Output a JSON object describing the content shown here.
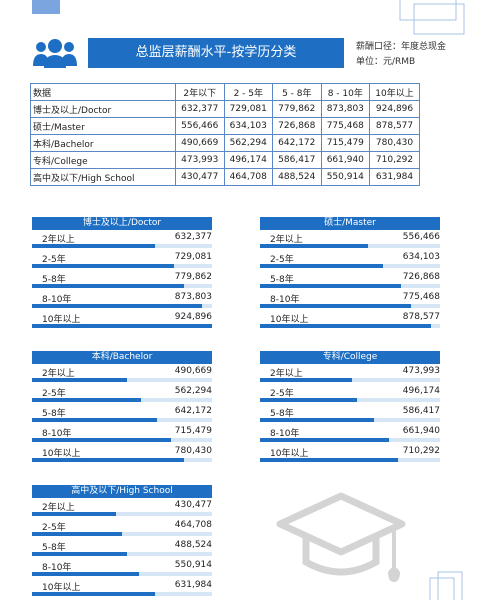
{
  "banner": {
    "title": "总监层薪酬水平-按学历分类"
  },
  "notes": {
    "line1": "薪酬口径：年度总现金",
    "line2": "单位：元/RMB"
  },
  "summary_table": {
    "header": [
      "数据",
      "2年以下",
      "2 - 5年",
      "5 - 8年",
      "8 - 10年",
      "10年以上"
    ],
    "rows": [
      [
        "博士及以上/Doctor",
        "632,377",
        "729,081",
        "779,862",
        "873,803",
        "924,896"
      ],
      [
        "硕士/Master",
        "556,466",
        "634,103",
        "726,868",
        "775,468",
        "878,577"
      ],
      [
        "本科/Bachelor",
        "490,669",
        "562,294",
        "642,172",
        "715,479",
        "780,430"
      ],
      [
        "专科/College",
        "473,993",
        "496,174",
        "586,417",
        "661,940",
        "710,292"
      ],
      [
        "高中及以下/High School",
        "430,477",
        "464,708",
        "488,524",
        "550,914",
        "631,984"
      ]
    ]
  },
  "cards": [
    {
      "title": "博士及以上/Doctor",
      "rows": [
        {
          "label": "2年以上",
          "value": "632,377"
        },
        {
          "label": "2-5年",
          "value": "729,081"
        },
        {
          "label": "5-8年",
          "value": "779,862"
        },
        {
          "label": "8-10年",
          "value": "873,803"
        },
        {
          "label": "10年以上",
          "value": "924,896"
        }
      ]
    },
    {
      "title": "硕士/Master",
      "rows": [
        {
          "label": "2年以上",
          "value": "556,466"
        },
        {
          "label": "2-5年",
          "value": "634,103"
        },
        {
          "label": "5-8年",
          "value": "726,868"
        },
        {
          "label": "8-10年",
          "value": "775,468"
        },
        {
          "label": "10年以上",
          "value": "878,577"
        }
      ]
    },
    {
      "title": "本科/Bachelor",
      "rows": [
        {
          "label": "2年以上",
          "value": "490,669"
        },
        {
          "label": "2-5年",
          "value": "562,294"
        },
        {
          "label": "5-8年",
          "value": "642,172"
        },
        {
          "label": "8-10年",
          "value": "715,479"
        },
        {
          "label": "10年以上",
          "value": "780,430"
        }
      ]
    },
    {
      "title": "专科/College",
      "rows": [
        {
          "label": "2年以上",
          "value": "473,993"
        },
        {
          "label": "2-5年",
          "value": "496,174"
        },
        {
          "label": "5-8年",
          "value": "586,417"
        },
        {
          "label": "8-10年",
          "value": "661,940"
        },
        {
          "label": "10年以上",
          "value": "710,292"
        }
      ]
    },
    {
      "title": "高中及以下/High School",
      "rows": [
        {
          "label": "2年以上",
          "value": "430,477"
        },
        {
          "label": "2-5年",
          "value": "464,708"
        },
        {
          "label": "5-8年",
          "value": "488,524"
        },
        {
          "label": "8-10年",
          "value": "550,914"
        },
        {
          "label": "10年以上",
          "value": "631,984"
        }
      ]
    }
  ],
  "icons": {
    "people": "people-icon",
    "graduation": "graduation-cap-icon"
  },
  "colors": {
    "accent": "#1e6fc3",
    "track": "#d7e6f7",
    "table_border": "#5b87c8"
  }
}
